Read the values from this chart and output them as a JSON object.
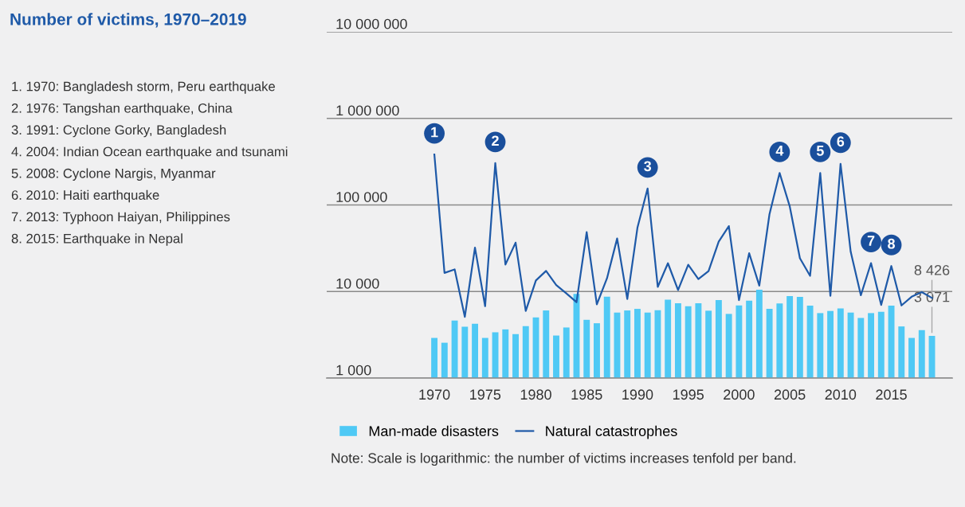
{
  "chart_data": {
    "type": "bar",
    "title": "Number of victims, 1970–2019",
    "x": [
      1970,
      1971,
      1972,
      1973,
      1974,
      1975,
      1976,
      1977,
      1978,
      1979,
      1980,
      1981,
      1982,
      1983,
      1984,
      1985,
      1986,
      1987,
      1988,
      1989,
      1990,
      1991,
      1992,
      1993,
      1994,
      1995,
      1996,
      1997,
      1998,
      1999,
      2000,
      2001,
      2002,
      2003,
      2004,
      2005,
      2006,
      2007,
      2008,
      2009,
      2010,
      2011,
      2012,
      2013,
      2014,
      2015,
      2016,
      2017,
      2018,
      2019
    ],
    "series": [
      {
        "name": "Man-made disasters",
        "color": "#4fc9f5",
        "values": [
          2910,
          2560,
          4620,
          3920,
          4240,
          2910,
          3380,
          3650,
          3220,
          3980,
          5020,
          6040,
          3100,
          3840,
          9370,
          4710,
          4300,
          8730,
          5710,
          6040,
          6300,
          5710,
          6080,
          8070,
          7310,
          6760,
          7310,
          6000,
          7960,
          5510,
          6910,
          7850,
          10500,
          6300,
          7260,
          8850,
          8670,
          6860,
          5630,
          5960,
          6390,
          5710,
          4950,
          5630,
          5830,
          6860,
          3950,
          2910,
          3580,
          3071
        ],
        "value_labels": [
          null,
          null,
          null,
          null,
          null,
          null,
          null,
          null,
          null,
          null,
          null,
          null,
          null,
          null,
          null,
          null,
          null,
          null,
          null,
          null,
          null,
          null,
          null,
          null,
          null,
          null,
          null,
          null,
          null,
          null,
          null,
          null,
          null,
          null,
          null,
          null,
          null,
          null,
          null,
          null,
          null,
          null,
          null,
          null,
          null,
          null,
          null,
          null,
          null,
          "3 071"
        ]
      },
      {
        "name": "Natural catastrophes",
        "type": "line",
        "color": "#1f5aa8",
        "values": [
          383000,
          16400,
          18000,
          5100,
          32100,
          6760,
          305000,
          20500,
          36700,
          5960,
          13400,
          17300,
          11900,
          9500,
          7520,
          48500,
          7100,
          14200,
          41000,
          8200,
          54600,
          155000,
          11300,
          21200,
          10400,
          20400,
          13900,
          17200,
          37600,
          57000,
          7950,
          27700,
          11700,
          78000,
          234000,
          96000,
          24200,
          15200,
          234000,
          8900,
          299000,
          28800,
          9050,
          21300,
          7000,
          19700,
          6900,
          8700,
          9860,
          8426
        ],
        "value_labels": [
          null,
          null,
          null,
          null,
          null,
          null,
          null,
          null,
          null,
          null,
          null,
          null,
          null,
          null,
          null,
          null,
          null,
          null,
          null,
          null,
          null,
          null,
          null,
          null,
          null,
          null,
          null,
          null,
          null,
          null,
          null,
          null,
          null,
          null,
          null,
          null,
          null,
          null,
          null,
          null,
          null,
          null,
          null,
          null,
          null,
          null,
          null,
          null,
          null,
          "8 426"
        ]
      }
    ],
    "log": "y",
    "ylim": [
      1000,
      10000000
    ],
    "yticks": [
      {
        "value": 1000,
        "label": "1 000"
      },
      {
        "value": 10000,
        "label": "10 000"
      },
      {
        "value": 100000,
        "label": "100 000"
      },
      {
        "value": 1000000,
        "label": "1 000 000"
      },
      {
        "value": 10000000,
        "label": "10 000 000"
      }
    ],
    "xlim": [
      1959.4,
      2021
    ],
    "xticks": [
      1970,
      1975,
      1980,
      1985,
      1990,
      1995,
      2000,
      2005,
      2010,
      2015
    ],
    "grid": "y",
    "legend": "bottom",
    "annotations": [
      "1. 1970: Bangladesh storm, Peru earthquake",
      "2. 1976: Tangshan earthquake, China",
      "3. 1991: Cyclone Gorky, Bangladesh",
      "4. 2004: Indian Ocean earthquake and tsunami",
      "5. 2008: Cyclone Nargis, Myanmar",
      "6. 2010: Haiti earthquake",
      "7. 2013: Typhoon Haiyan, Philippines",
      "8. 2015: Earthquake in Nepal",
      {
        "text": "1",
        "x": 1970,
        "y": 383000
      },
      {
        "text": "2",
        "x": 1976,
        "y": 305000
      },
      {
        "text": "3",
        "x": 1991,
        "y": 155000
      },
      {
        "text": "4",
        "x": 2004,
        "y": 234000
      },
      {
        "text": "5",
        "x": 2008,
        "y": 234000
      },
      {
        "text": "6",
        "x": 2010,
        "y": 299000
      },
      {
        "text": "7",
        "x": 2013,
        "y": 21300
      },
      {
        "text": "8",
        "x": 2015,
        "y": 19700
      },
      "Note: Scale is logarithmic: the number of victims increases tenfold per band."
    ]
  }
}
